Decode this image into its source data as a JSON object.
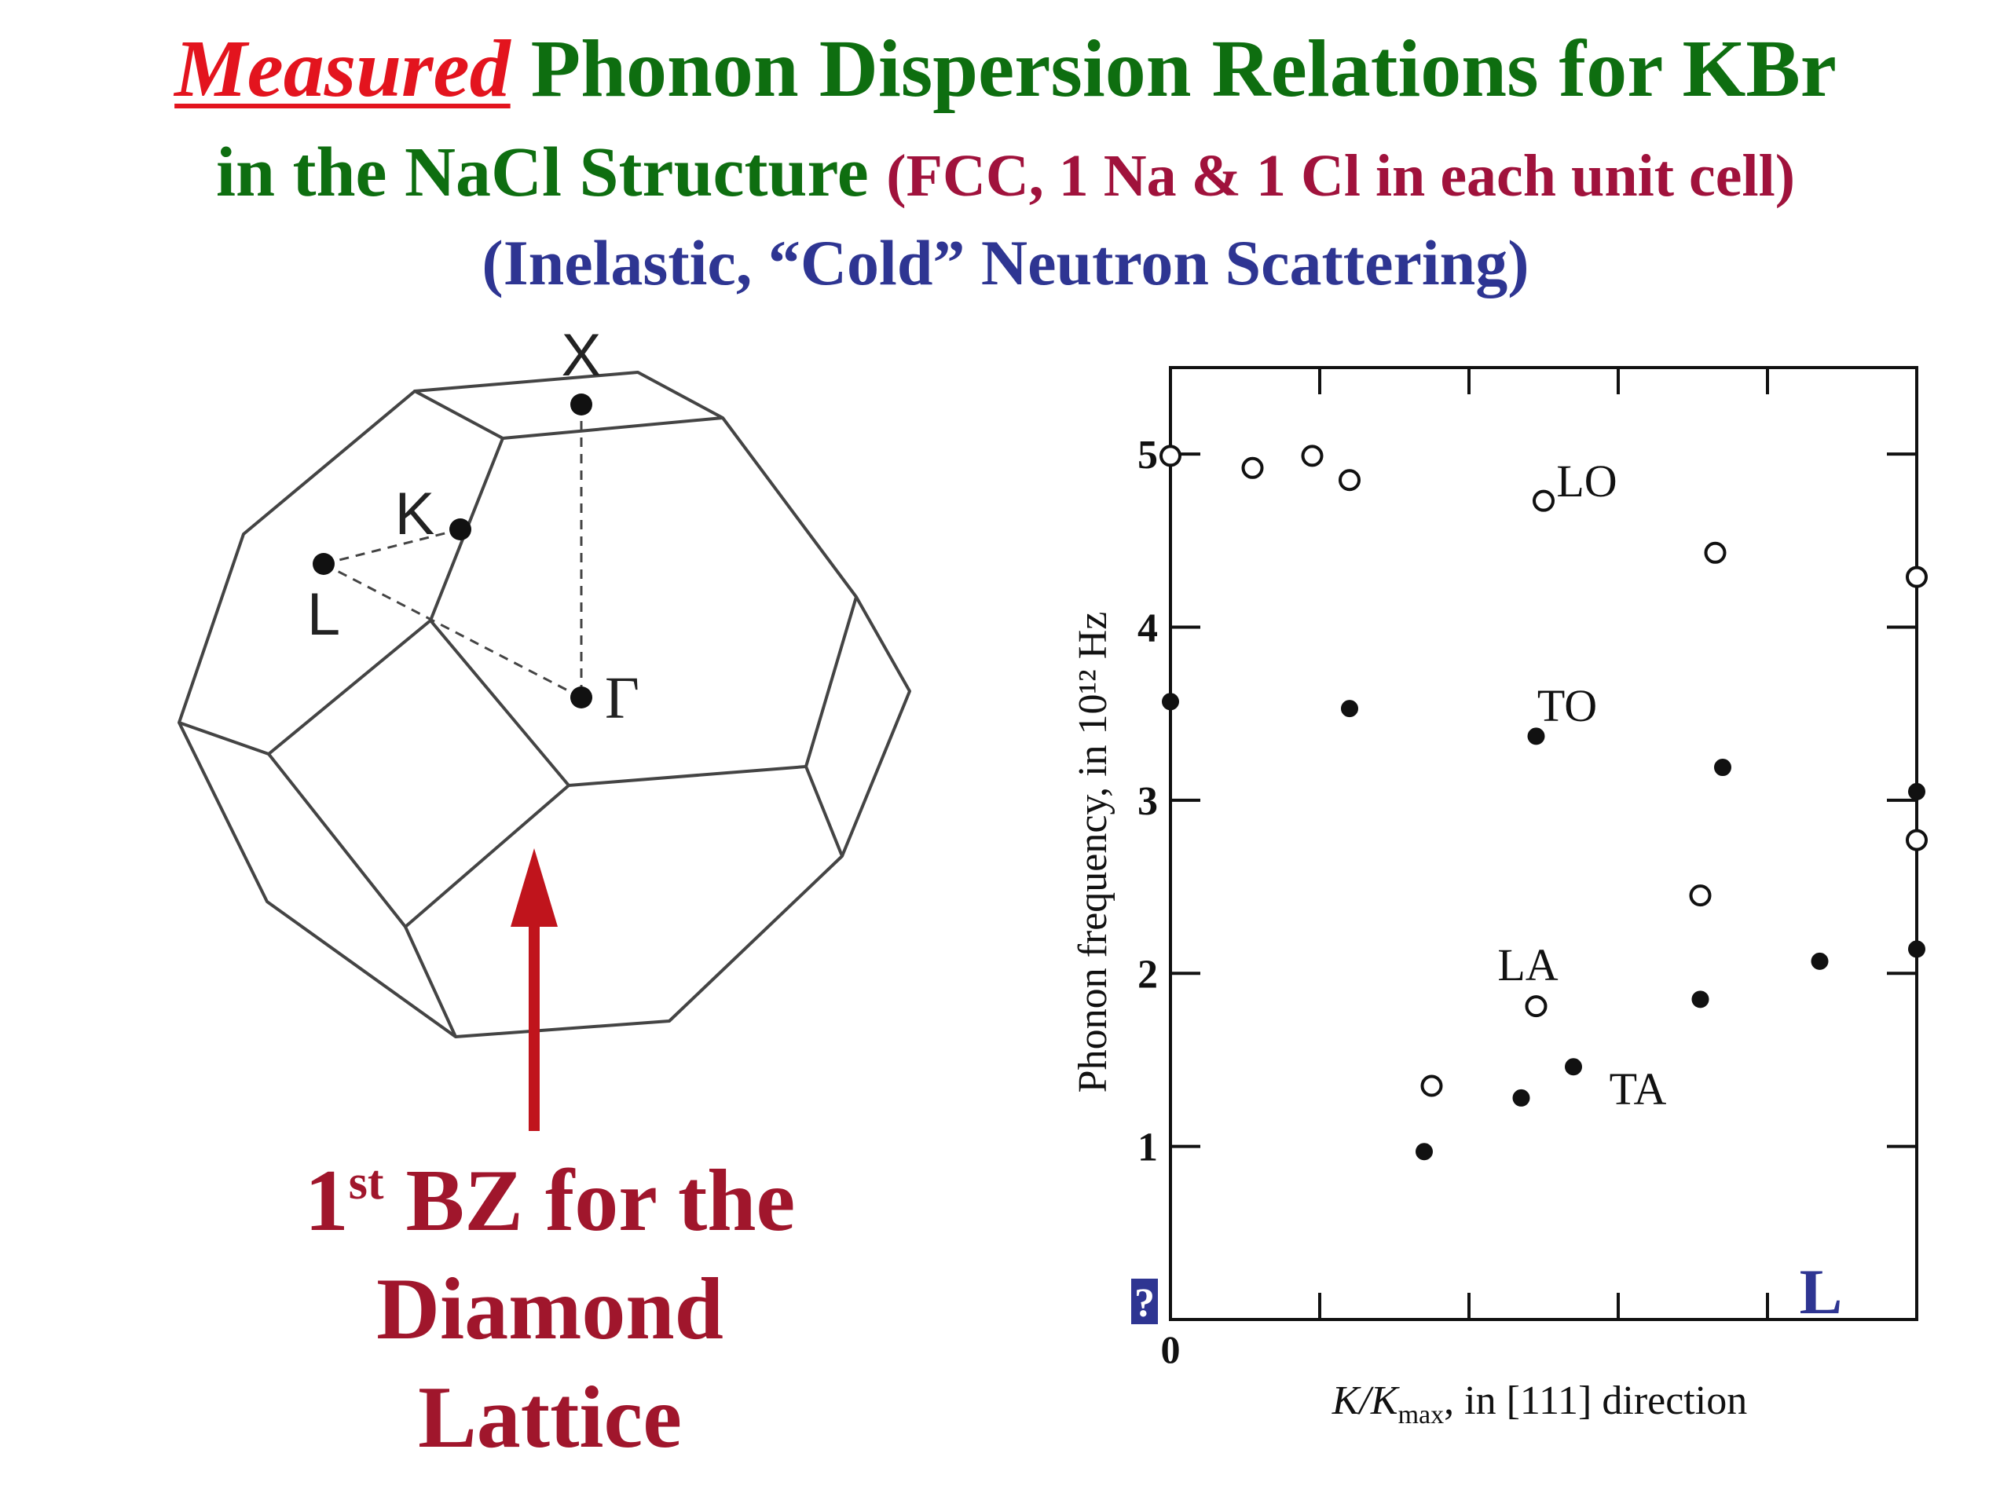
{
  "title": {
    "emphasis": "Measured",
    "line1_rest": "Phonon Dispersion Relations for KBr",
    "line2_green": "in the NaCl Structure",
    "line2_note": "(FCC, 1 Na & 1 Cl in each unit cell)",
    "line3": "(Inelastic, “Cold” Neutron Scattering)"
  },
  "bz_figure": {
    "points": {
      "x": "X",
      "k": "K",
      "l": "L",
      "gamma": "Γ"
    },
    "caption": {
      "line1_num": "1",
      "line1_sup": "st",
      "line1_rest": "BZ for the",
      "line2": "Diamond",
      "line3": "Lattice"
    },
    "arrow_color": "#c0141c"
  },
  "chart_data": {
    "type": "scatter",
    "ylabel": "Phonon frequency, in 10¹² Hz",
    "xlabel_main": "K/K",
    "xlabel_sub": "max",
    "xlabel_rest": ", in [111] direction",
    "xlim": [
      0,
      1
    ],
    "ylim": [
      0,
      5.5
    ],
    "yticks": [
      "1",
      "2",
      "3",
      "4",
      "5"
    ],
    "xtick_label_zero": "0",
    "corner_label_right": "L",
    "corner_label_left": "?",
    "branch_labels": {
      "lo": "LO",
      "to": "TO",
      "la": "LA",
      "ta": "TA"
    },
    "series": [
      {
        "marker": "open",
        "x": [
          0.0,
          0.11,
          0.19,
          0.24,
          0.5,
          0.73,
          1.0,
          0.71,
          0.49,
          0.35,
          1.0
        ],
        "y": [
          4.99,
          4.92,
          4.99,
          4.85,
          4.73,
          4.43,
          4.29,
          2.45,
          1.81,
          1.35,
          2.77
        ]
      },
      {
        "marker": "filled",
        "x": [
          0.0,
          0.24,
          0.49,
          0.74,
          1.0,
          0.34,
          0.47,
          0.54,
          0.71,
          0.87,
          1.0
        ],
        "y": [
          3.57,
          3.53,
          3.37,
          3.19,
          3.05,
          0.97,
          1.28,
          1.46,
          1.85,
          2.07,
          2.14
        ]
      }
    ],
    "colors": {
      "corner_label": "#2e3592"
    }
  }
}
